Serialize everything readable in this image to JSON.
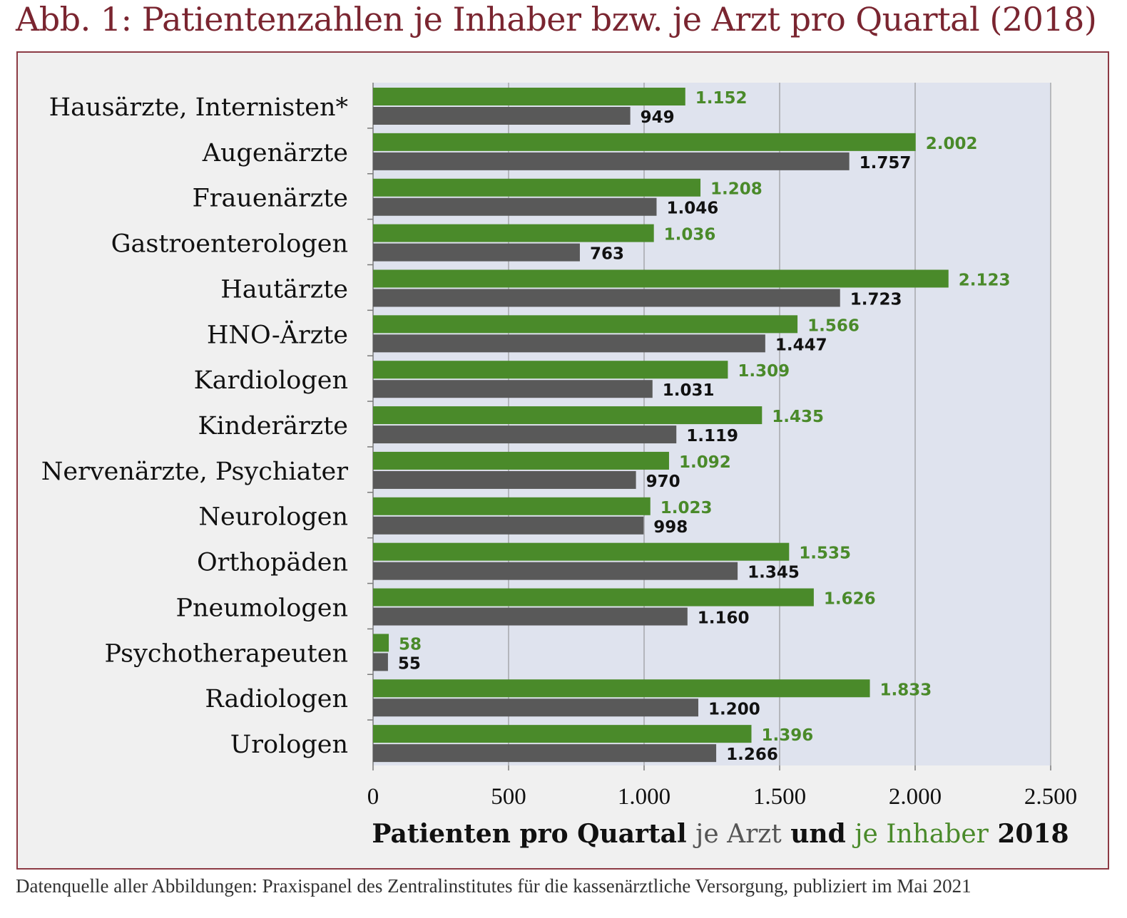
{
  "figure": {
    "title": "Abb. 1: Patientenzahlen je Inhaber bzw. je Arzt pro Quartal (2018)",
    "source": "Datenquelle aller Abbildungen: Praxispanel des Zentralinstitutes für die kassenärztliche Versorgung, publiziert im Mai 2021"
  },
  "colors": {
    "title": "#7a2530",
    "frame": "#8c3a44",
    "panel_background": "#f0f0f0",
    "plot_background": "#dfe3ee",
    "inhaber": "#4a8a2a",
    "arzt": "#595959",
    "inhaber_label": "#4a8a2a",
    "arzt_label": "#111111"
  },
  "chart_data": {
    "type": "bar",
    "orientation": "horizontal",
    "categories": [
      "Hausärzte, Internisten*",
      "Augenärzte",
      "Frauenärzte",
      "Gastroenterologen",
      "Hautärzte",
      "HNO-Ärzte",
      "Kardiologen",
      "Kinderärzte",
      "Nervenärzte, Psychiater",
      "Neurologen",
      "Orthopäden",
      "Pneumologen",
      "Psychotherapeuten",
      "Radiologen",
      "Urologen"
    ],
    "series": [
      {
        "name": "je Inhaber",
        "values": [
          1152,
          2002,
          1208,
          1036,
          2123,
          1566,
          1309,
          1435,
          1092,
          1023,
          1535,
          1626,
          58,
          1833,
          1396
        ],
        "labels": [
          "1.152",
          "2.002",
          "1.208",
          "1.036",
          "2.123",
          "1.566",
          "1.309",
          "1.435",
          "1.092",
          "1.023",
          "1.535",
          "1.626",
          "58",
          "1.833",
          "1.396"
        ]
      },
      {
        "name": "je Arzt",
        "values": [
          949,
          1757,
          1046,
          763,
          1723,
          1447,
          1031,
          1119,
          970,
          998,
          1345,
          1160,
          55,
          1200,
          1266
        ],
        "labels": [
          "949",
          "1.757",
          "1.046",
          "763",
          "1.723",
          "1.447",
          "1.031",
          "1.119",
          "970",
          "998",
          "1.345",
          "1.160",
          "55",
          "1.200",
          "1.266"
        ]
      }
    ],
    "xlim": [
      0,
      2500
    ],
    "xticks": [
      0,
      500,
      1000,
      1500,
      2000,
      2500
    ],
    "xtick_labels": [
      "0",
      "500",
      "1.000",
      "1.500",
      "2.000",
      "2.500"
    ],
    "xlabel_parts": [
      {
        "text": "Patienten pro Quartal ",
        "style": "bold"
      },
      {
        "text": "je Arzt",
        "style": "arzt"
      },
      {
        "text": " und ",
        "style": "bold"
      },
      {
        "text": "je Inhaber",
        "style": "inhaber"
      },
      {
        "text": " 2018",
        "style": "bold"
      }
    ],
    "grid": true,
    "legend": "none"
  }
}
